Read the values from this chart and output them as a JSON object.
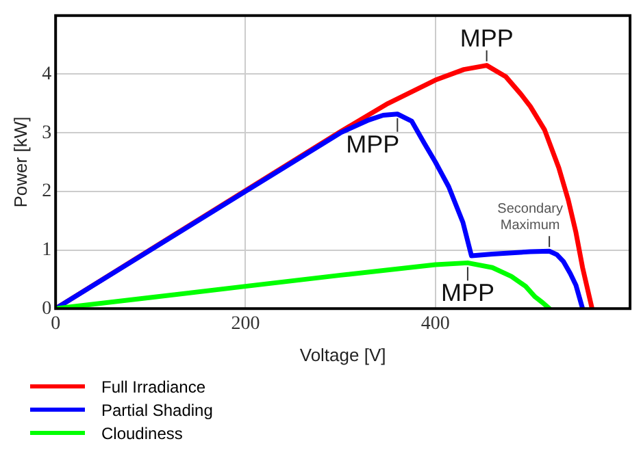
{
  "chart_data": {
    "type": "line",
    "xlabel": "Voltage [V]",
    "ylabel": "Power [kW]",
    "xlim": [
      0,
      605
    ],
    "xticks": [
      0,
      200,
      400
    ],
    "ylim": [
      0,
      5
    ],
    "yticks": [
      0,
      1,
      2,
      3,
      4
    ],
    "grid": true,
    "legend": "bottom left",
    "marker": "none",
    "line_style": "solid",
    "series": [
      {
        "name": "Full Irradiance",
        "color": "#ff0000",
        "x": [
          0,
          300,
          350,
          400,
          430,
          454,
          474,
          490,
          500,
          515,
          530,
          540,
          548,
          555,
          565
        ],
        "values": [
          0,
          3.02,
          3.5,
          3.9,
          4.08,
          4.15,
          3.96,
          3.66,
          3.45,
          3.05,
          2.4,
          1.85,
          1.3,
          0.7,
          0
        ]
      },
      {
        "name": "Partial Shading",
        "color": "#0000ff",
        "x": [
          0,
          100,
          200,
          300,
          330,
          345,
          360,
          375,
          388,
          400,
          414,
          429,
          438,
          460,
          500,
          520,
          528,
          535,
          542,
          548,
          555
        ],
        "values": [
          0,
          1,
          2,
          3,
          3.22,
          3.3,
          3.32,
          3.2,
          2.83,
          2.5,
          2.08,
          1.47,
          0.9,
          0.93,
          0.97,
          0.98,
          0.92,
          0.8,
          0.6,
          0.4,
          0
        ]
      },
      {
        "name": "Cloudiness",
        "color": "#00ff00",
        "x": [
          0,
          100,
          200,
          300,
          400,
          434,
          460,
          480,
          495,
          505,
          513,
          520
        ],
        "values": [
          0,
          0.19,
          0.38,
          0.57,
          0.75,
          0.78,
          0.7,
          0.55,
          0.38,
          0.2,
          0.1,
          0
        ]
      }
    ],
    "annotations": [
      {
        "text": "MPP",
        "x": 454,
        "y": 4.15
      },
      {
        "text": "MPP",
        "x": 360,
        "y": 3.32
      },
      {
        "text": "MPP",
        "x": 434,
        "y": 0.78
      },
      {
        "text": "Secondary Maximum",
        "x": 520,
        "y": 0.98
      }
    ]
  }
}
